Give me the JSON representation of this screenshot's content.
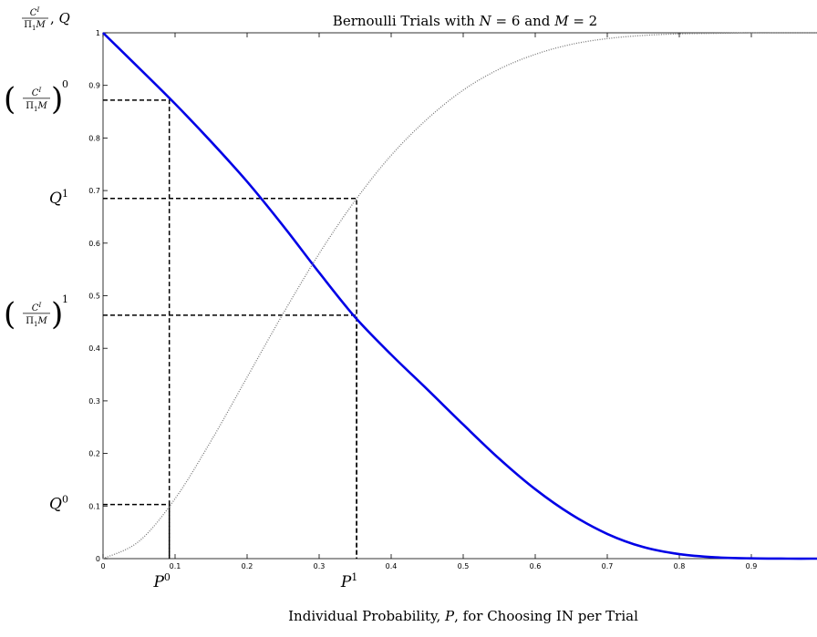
{
  "chart_data": {
    "type": "line",
    "title": {
      "prefix": "Bernoulli Trials with ",
      "n_sym": "N",
      "n_eq": " = 6",
      "joiner": " and ",
      "m_sym": "M",
      "m_eq": " = 2"
    },
    "xlabel": {
      "pre": "Individual Probability, ",
      "sym": "P",
      "post": ", for Choosing IN per Trial"
    },
    "ylabel": {
      "num": "C",
      "num_sup": "I",
      "den_pi": "Π",
      "den_sub": "1",
      "den_m": "M",
      "sep": ", ",
      "q": "Q"
    },
    "xlim": [
      0,
      1
    ],
    "ylim": [
      0,
      1
    ],
    "x_ticks": [
      "0",
      "0.1",
      "0.2",
      "0.3",
      "0.4",
      "0.5",
      "0.6",
      "0.7",
      "0.8",
      "0.9"
    ],
    "y_ticks": [
      "0",
      "0.1",
      "0.2",
      "0.3",
      "0.4",
      "0.5",
      "0.6",
      "0.7",
      "0.8",
      "0.9",
      "1"
    ],
    "series": [
      {
        "style": "solid",
        "color": "#0000e6",
        "x": [
          0,
          0.05,
          0.1,
          0.15,
          0.2,
          0.25,
          0.3,
          0.35,
          0.4,
          0.45,
          0.5,
          0.55,
          0.6,
          0.65,
          0.7,
          0.75,
          0.8,
          0.85,
          0.9,
          0.95,
          1
        ],
        "y": [
          1,
          0.933,
          0.865,
          0.793,
          0.717,
          0.633,
          0.544,
          0.459,
          0.388,
          0.322,
          0.255,
          0.19,
          0.132,
          0.084,
          0.047,
          0.022,
          0.0085,
          0.0025,
          0.0005,
          0,
          0
        ]
      },
      {
        "style": "dotted",
        "color": "#777777",
        "x": [
          0,
          0.05,
          0.1,
          0.15,
          0.2,
          0.25,
          0.3,
          0.35,
          0.4,
          0.45,
          0.5,
          0.55,
          0.6,
          0.65,
          0.7,
          0.75,
          0.8,
          0.85,
          0.9,
          0.95,
          1
        ],
        "y": [
          0,
          0.033,
          0.114,
          0.224,
          0.345,
          0.466,
          0.58,
          0.681,
          0.767,
          0.836,
          0.891,
          0.931,
          0.959,
          0.978,
          0.989,
          0.995,
          0.998,
          0.999,
          1,
          1,
          1
        ]
      }
    ],
    "reference_lines": [
      {
        "x": 0.092,
        "y": 0.872
      },
      {
        "x": 0.092,
        "y": 0.103
      },
      {
        "x": 0.352,
        "y": 0.685
      },
      {
        "x": 0.352,
        "y": 0.463
      }
    ],
    "annotations": {
      "p0": {
        "sym": "P",
        "sup": "0",
        "x": 0.092
      },
      "p1": {
        "sym": "P",
        "sup": "1",
        "x": 0.352
      },
      "q1": {
        "sym": "Q",
        "sup": "1",
        "y": 0.685
      },
      "q0": {
        "sym": "Q",
        "sup": "0",
        "y": 0.103
      },
      "c0": {
        "num": "C",
        "num_sup": "I",
        "den_pi": "Π",
        "den_sub": "1",
        "den_m": "M",
        "sup": "0",
        "y": 0.872
      },
      "c1": {
        "num": "C",
        "num_sup": "I",
        "den_pi": "Π",
        "den_sub": "1",
        "den_m": "M",
        "sup": "1",
        "y": 0.463
      }
    },
    "grid": false,
    "legend": "none"
  }
}
